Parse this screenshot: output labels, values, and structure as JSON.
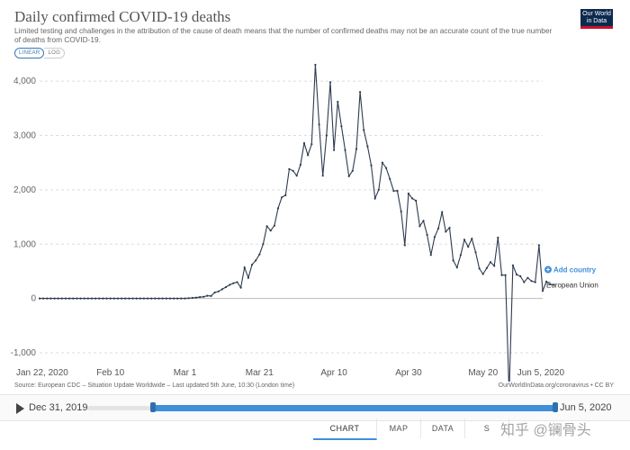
{
  "header": {
    "title": "Daily confirmed COVID-19 deaths",
    "subtitle": "Limited testing and challenges in the attribution of the cause of death means that the number of confirmed deaths may not be an accurate count of the true number of deaths from COVID-19.",
    "logo_line1": "Our World",
    "logo_line2": "in Data"
  },
  "scale": {
    "linear": "LINEAR",
    "log": "LOG"
  },
  "chart_data": {
    "type": "line",
    "title": "Daily confirmed COVID-19 deaths",
    "ylim": [
      -1000,
      4400
    ],
    "y_ticks": [
      -1000,
      0,
      1000,
      2000,
      3000,
      4000
    ],
    "y_tick_labels": [
      "-1,000",
      "0",
      "1,000",
      "2,000",
      "3,000",
      "4,000"
    ],
    "x_start": "2020-01-22",
    "x_end": "2020-06-05",
    "x_tick_labels": [
      "Jan 22, 2020",
      "Feb 10",
      "Mar 1",
      "Mar 21",
      "Apr 10",
      "Apr 30",
      "May 20",
      "Jun 5, 2020"
    ],
    "x_tick_dates": [
      "2020-01-22",
      "2020-02-10",
      "2020-03-01",
      "2020-03-21",
      "2020-04-10",
      "2020-04-30",
      "2020-05-20",
      "2020-06-05"
    ],
    "series": [
      {
        "name": "European Union",
        "color": "#2d3b4e",
        "values": [
          0,
          0,
          0,
          0,
          0,
          0,
          0,
          0,
          0,
          0,
          0,
          0,
          0,
          0,
          0,
          0,
          0,
          0,
          0,
          0,
          0,
          0,
          0,
          0,
          0,
          0,
          0,
          0,
          0,
          0,
          0,
          0,
          0,
          0,
          0,
          0,
          0,
          0,
          0,
          0,
          5,
          10,
          15,
          25,
          30,
          50,
          45,
          110,
          130,
          170,
          210,
          250,
          280,
          300,
          200,
          570,
          380,
          620,
          700,
          810,
          1000,
          1330,
          1250,
          1340,
          1660,
          1860,
          1900,
          2380,
          2350,
          2260,
          2460,
          2860,
          2640,
          2840,
          4300,
          3200,
          2260,
          3000,
          3980,
          2730,
          3620,
          3170,
          2730,
          2250,
          2350,
          2750,
          3800,
          3100,
          2800,
          2450,
          1840,
          2000,
          2500,
          2400,
          2200,
          1980,
          1980,
          1600,
          980,
          1930,
          1840,
          1800,
          1330,
          1430,
          1170,
          800,
          1130,
          1290,
          1590,
          1230,
          1300,
          700,
          570,
          800,
          1080,
          950,
          1100,
          850,
          550,
          450,
          560,
          670,
          600,
          1120,
          430,
          430,
          -1750,
          610,
          440,
          410,
          300,
          380,
          320,
          300,
          980,
          140,
          310,
          260,
          250
        ]
      }
    ],
    "legend_label": "European Union",
    "add_country": "Add country"
  },
  "footer": {
    "source": "Source: European CDC – Situation Update Worldwide – Last updated 5th June, 10:30 (London time)",
    "url": "OurWorldInData.org/coronavirus • CC BY"
  },
  "timeline": {
    "start": "Dec 31, 2019",
    "end": "Jun 5, 2020",
    "range_start_fraction": 0.14,
    "range_end_fraction": 1.0
  },
  "tabs": [
    {
      "label": "CHART",
      "active": true
    },
    {
      "label": "MAP",
      "active": false
    },
    {
      "label": "DATA",
      "active": false
    },
    {
      "label": "S",
      "active": false
    }
  ],
  "watermark": "知乎 @镧骨头"
}
